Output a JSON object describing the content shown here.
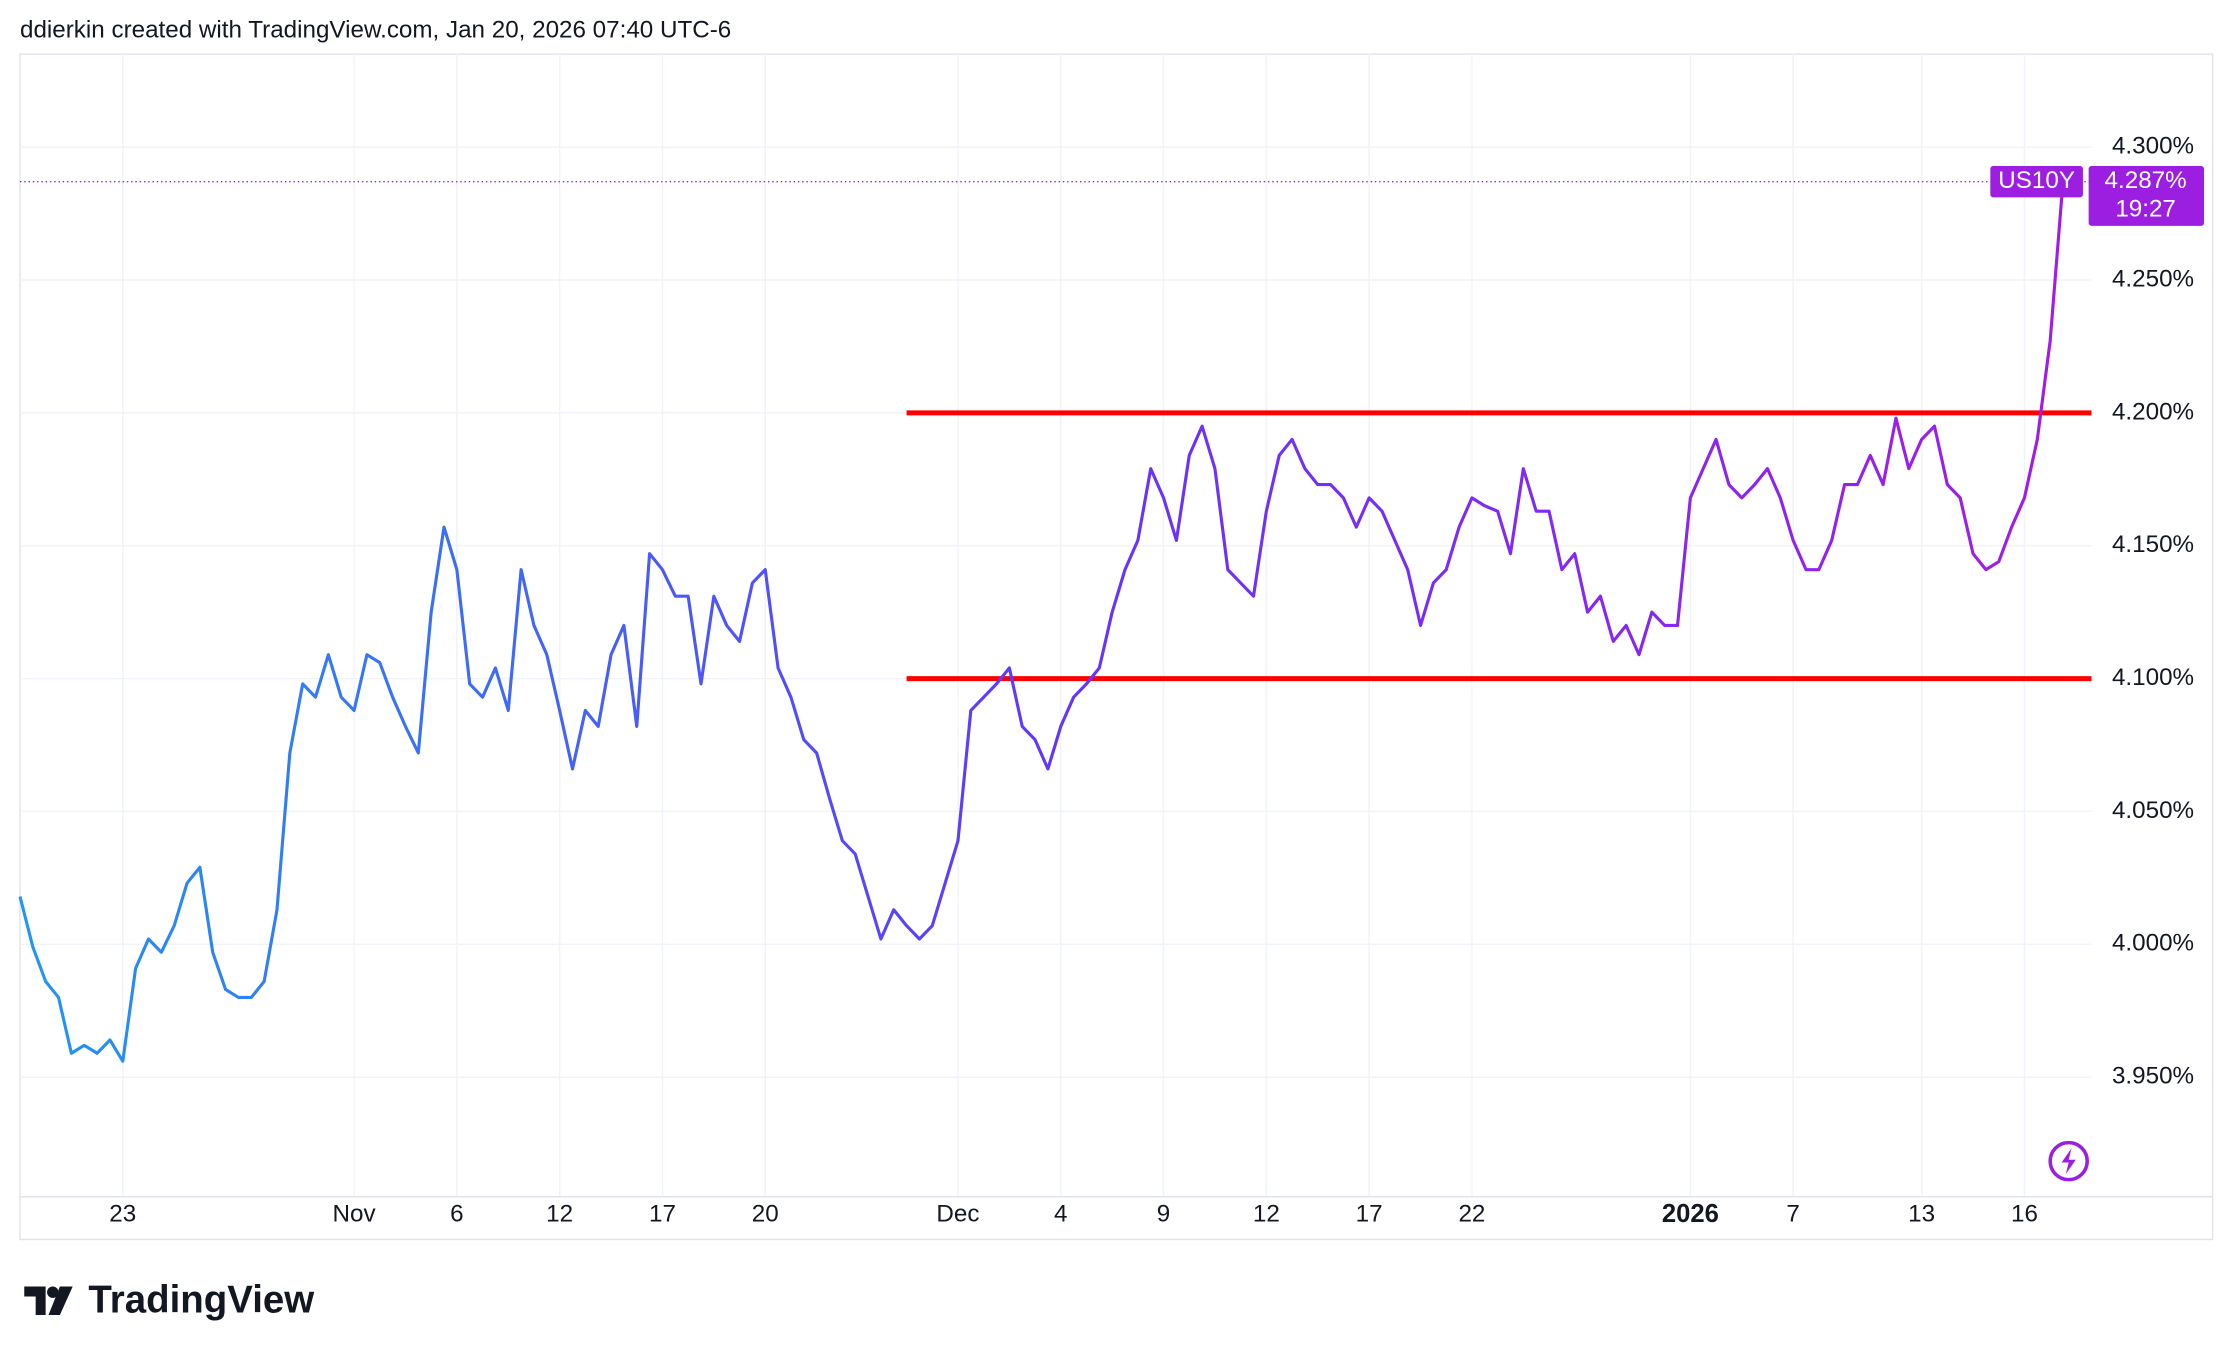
{
  "header": "ddierkin created with TradingView.com, Jan 20, 2026 07:40 UTC-6",
  "footer": "TradingView",
  "chart_data": {
    "type": "line",
    "categories": [
      null,
      null,
      null,
      null,
      null,
      null,
      null,
      null,
      "23",
      null,
      null,
      null,
      null,
      null,
      null,
      null,
      null,
      null,
      null,
      null,
      null,
      null,
      null,
      null,
      null,
      null,
      "Nov",
      null,
      null,
      null,
      null,
      null,
      null,
      null,
      "6",
      null,
      null,
      null,
      null,
      null,
      null,
      null,
      "12",
      null,
      null,
      null,
      null,
      null,
      null,
      null,
      "17",
      null,
      null,
      null,
      null,
      null,
      null,
      null,
      "20",
      null,
      null,
      null,
      null,
      null,
      null,
      null,
      null,
      null,
      null,
      null,
      null,
      null,
      null,
      "Dec",
      null,
      null,
      null,
      null,
      null,
      null,
      null,
      "4",
      null,
      null,
      null,
      null,
      null,
      null,
      null,
      "9",
      null,
      null,
      null,
      null,
      null,
      null,
      null,
      "12",
      null,
      null,
      null,
      null,
      null,
      null,
      null,
      "17",
      null,
      null,
      null,
      null,
      null,
      null,
      null,
      "22",
      null,
      null,
      null,
      null,
      null,
      null,
      null,
      null,
      null,
      null,
      null,
      null,
      null,
      null,
      null,
      null,
      "2026",
      null,
      null,
      null,
      null,
      null,
      null,
      null,
      "7",
      null,
      null,
      null,
      null,
      null,
      null,
      null,
      null,
      null,
      "13",
      null,
      null,
      null,
      null,
      null,
      null,
      null,
      "16",
      null,
      null,
      null
    ],
    "series": [
      {
        "name": "US10Y",
        "colors": [
          "#2196f3",
          "#6236ff",
          "#a21ce8"
        ],
        "values": [
          4.018,
          3.999,
          3.986,
          3.98,
          3.959,
          3.962,
          3.959,
          3.964,
          3.956,
          3.991,
          4.002,
          3.997,
          4.007,
          4.023,
          4.029,
          3.997,
          3.983,
          3.98,
          3.98,
          3.986,
          4.013,
          4.072,
          4.098,
          4.093,
          4.109,
          4.093,
          4.088,
          4.109,
          4.106,
          4.093,
          4.082,
          4.072,
          4.125,
          4.157,
          4.141,
          4.098,
          4.093,
          4.104,
          4.088,
          4.141,
          4.12,
          4.109,
          4.088,
          4.066,
          4.088,
          4.082,
          4.109,
          4.12,
          4.082,
          4.147,
          4.141,
          4.131,
          4.131,
          4.098,
          4.131,
          4.12,
          4.114,
          4.136,
          4.141,
          4.104,
          4.093,
          4.077,
          4.072,
          4.055,
          4.039,
          4.034,
          4.018,
          4.002,
          4.013,
          4.007,
          4.002,
          4.007,
          4.023,
          4.039,
          4.088,
          4.093,
          4.098,
          4.104,
          4.082,
          4.077,
          4.066,
          4.082,
          4.093,
          4.098,
          4.104,
          4.125,
          4.141,
          4.152,
          4.179,
          4.168,
          4.152,
          4.184,
          4.195,
          4.179,
          4.141,
          4.136,
          4.131,
          4.163,
          4.184,
          4.19,
          4.179,
          4.173,
          4.173,
          4.168,
          4.157,
          4.168,
          4.163,
          4.152,
          4.141,
          4.12,
          4.136,
          4.141,
          4.157,
          4.168,
          4.165,
          4.163,
          4.147,
          4.179,
          4.163,
          4.163,
          4.141,
          4.147,
          4.125,
          4.131,
          4.114,
          4.12,
          4.109,
          4.125,
          4.12,
          4.12,
          4.168,
          4.179,
          4.19,
          4.173,
          4.168,
          4.173,
          4.179,
          4.168,
          4.152,
          4.141,
          4.141,
          4.152,
          4.173,
          4.173,
          4.184,
          4.173,
          4.198,
          4.179,
          4.19,
          4.195,
          4.173,
          4.168,
          4.147,
          4.141,
          4.144,
          4.157,
          4.168,
          4.19,
          4.227,
          4.287
        ],
        "last_value_label": "4.287%",
        "countdown": "19:27",
        "marker_color": "#9c1ee0"
      }
    ],
    "ylim": [
      3.905,
      4.335
    ],
    "yticks": [
      {
        "value": 3.95,
        "label": "3.950%"
      },
      {
        "value": 4.0,
        "label": "4.000%"
      },
      {
        "value": 4.05,
        "label": "4.050%"
      },
      {
        "value": 4.1,
        "label": "4.100%"
      },
      {
        "value": 4.15,
        "label": "4.150%"
      },
      {
        "value": 4.2,
        "label": "4.200%"
      },
      {
        "value": 4.25,
        "label": "4.250%"
      },
      {
        "value": 4.3,
        "label": "4.300%"
      }
    ],
    "grid": true,
    "hlines": [
      {
        "value": 4.2,
        "color": "#ff0000",
        "start": 69
      },
      {
        "value": 4.1,
        "color": "#ff0000",
        "start": 69
      }
    ]
  }
}
